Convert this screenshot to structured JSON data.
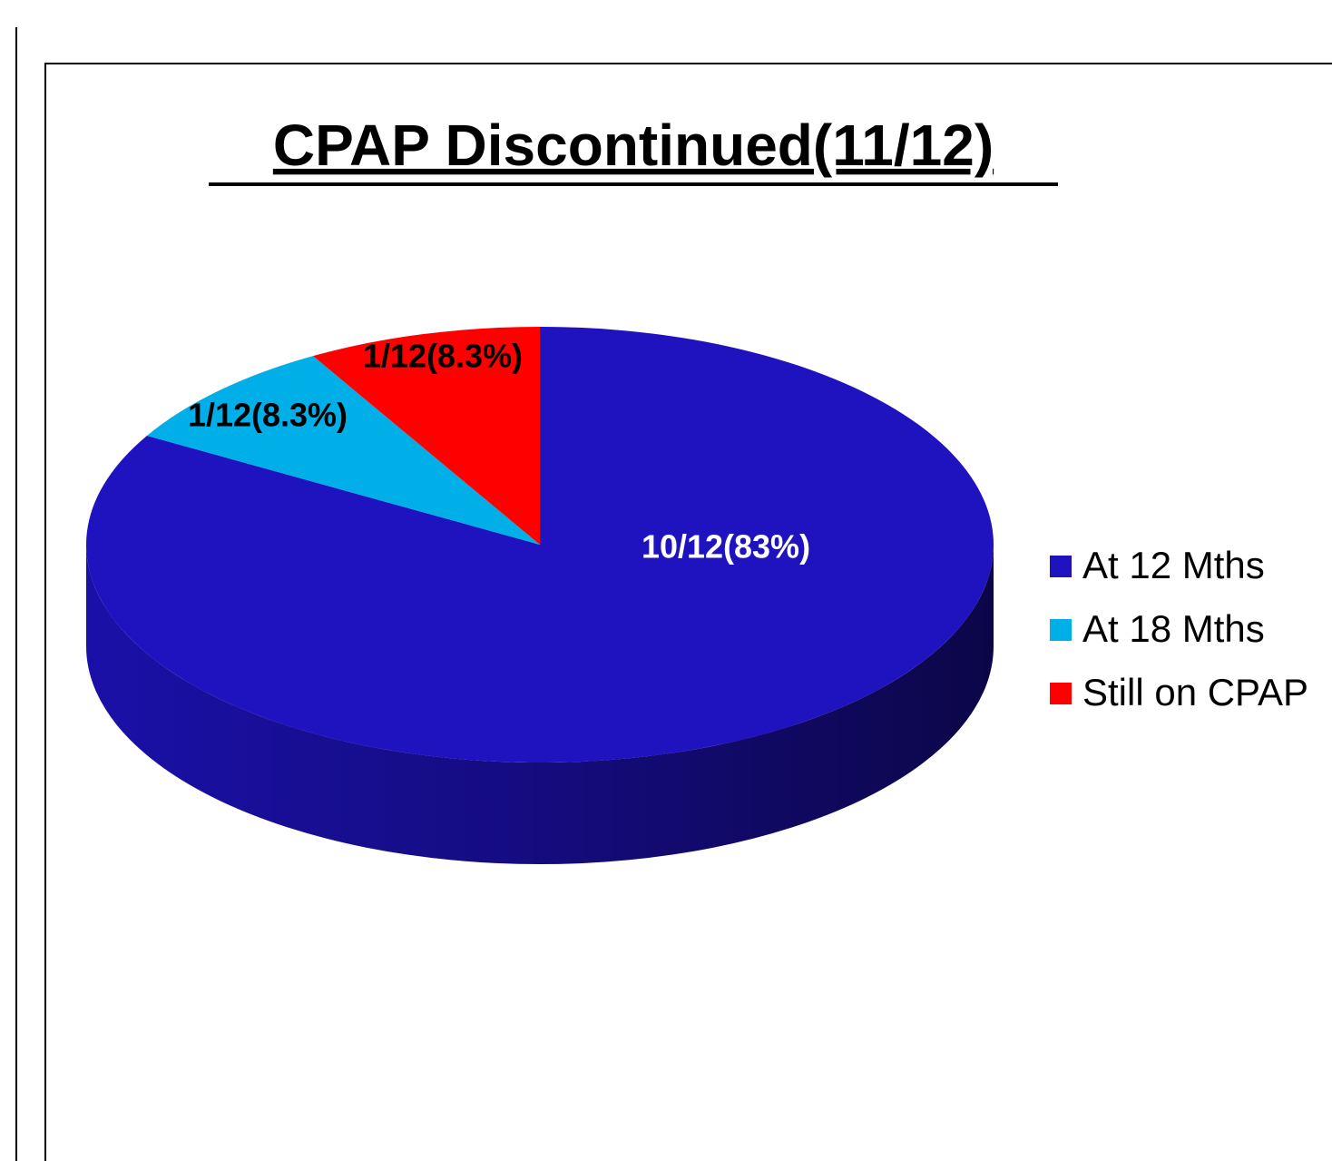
{
  "chart_data": {
    "type": "pie",
    "title": "CPAP Discontinued(11/12)",
    "categories": [
      "At 12 Mths",
      "At 18 Mths",
      "Still on CPAP"
    ],
    "values": [
      83,
      8.3,
      8.3
    ],
    "value_labels": [
      "10/12(83%)",
      "1/12(8.3%)",
      "1/12(8.3%)"
    ],
    "colors": [
      "#1f12bf",
      "#00aee8",
      "#ff0000"
    ],
    "legend": "right"
  }
}
